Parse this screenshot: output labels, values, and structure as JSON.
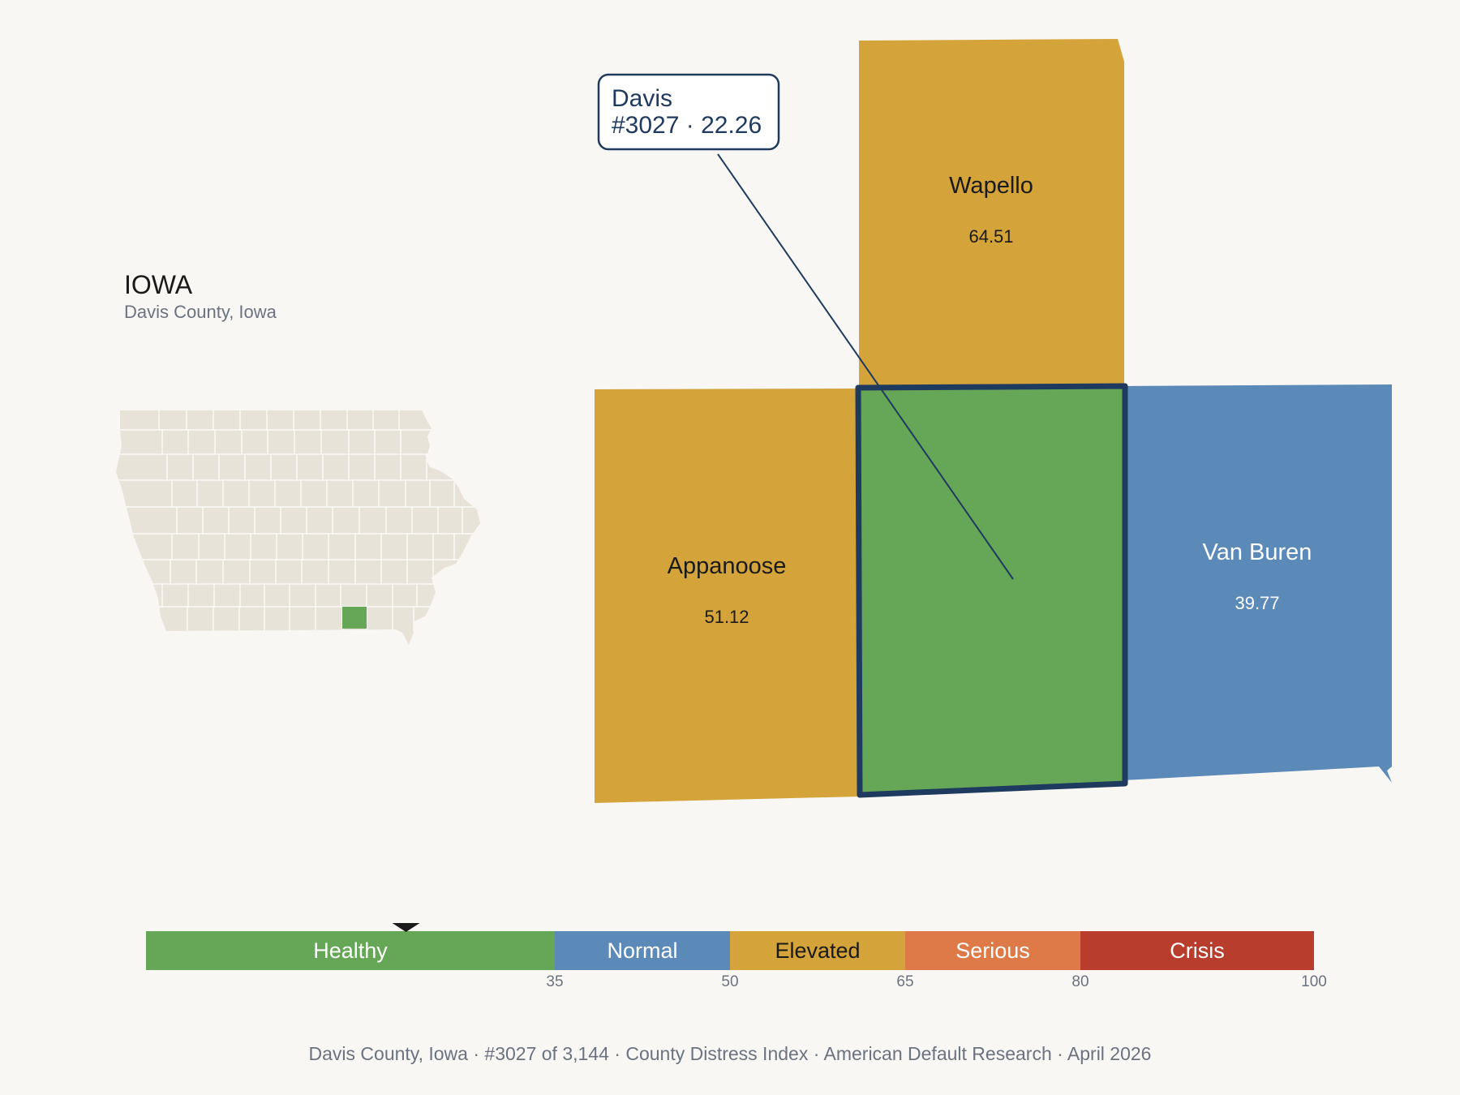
{
  "state": {
    "name": "IOWA",
    "subtitle": "Davis County, Iowa",
    "fill_color": "#e8e3d8",
    "grid_color": "#ffffff",
    "highlight_color": "#66a757"
  },
  "callout": {
    "county": "Davis",
    "detail": "#3027 · 22.26",
    "border_color": "#1f3a5f"
  },
  "counties": [
    {
      "name": "Wapello",
      "value": "64.51",
      "color": "#d4a43a",
      "text_color": "#1a1a1a"
    },
    {
      "name": "Appanoose",
      "value": "51.12",
      "color": "#d4a43a",
      "text_color": "#1a1a1a"
    },
    {
      "name": "Van Buren",
      "value": "39.77",
      "color": "#5b89b8",
      "text_color": "#ffffff"
    },
    {
      "name": "Davis",
      "value": "",
      "color": "#66a757",
      "text_color": "#1a1a1a",
      "highlighted": true
    }
  ],
  "scale": {
    "min": 0,
    "max": 100,
    "marker_value": 22.26,
    "bands": [
      {
        "label": "Healthy",
        "from": 0,
        "to": 35,
        "color": "#66a757",
        "text_color": "#ffffff"
      },
      {
        "label": "Normal",
        "from": 35,
        "to": 50,
        "color": "#5b89b8",
        "text_color": "#ffffff"
      },
      {
        "label": "Elevated",
        "from": 50,
        "to": 65,
        "color": "#d4a43a",
        "text_color": "#1a1a1a"
      },
      {
        "label": "Serious",
        "from": 65,
        "to": 80,
        "color": "#dd7a48",
        "text_color": "#ffffff"
      },
      {
        "label": "Crisis",
        "from": 80,
        "to": 100,
        "color": "#b83d2c",
        "text_color": "#ffffff"
      }
    ],
    "ticks": [
      "35",
      "50",
      "65",
      "80",
      "100"
    ]
  },
  "footer": {
    "items": [
      "Davis County, Iowa",
      "#3027 of 3,144",
      "County Distress Index",
      "American Default Research",
      "April 2026"
    ],
    "separator": "·"
  }
}
